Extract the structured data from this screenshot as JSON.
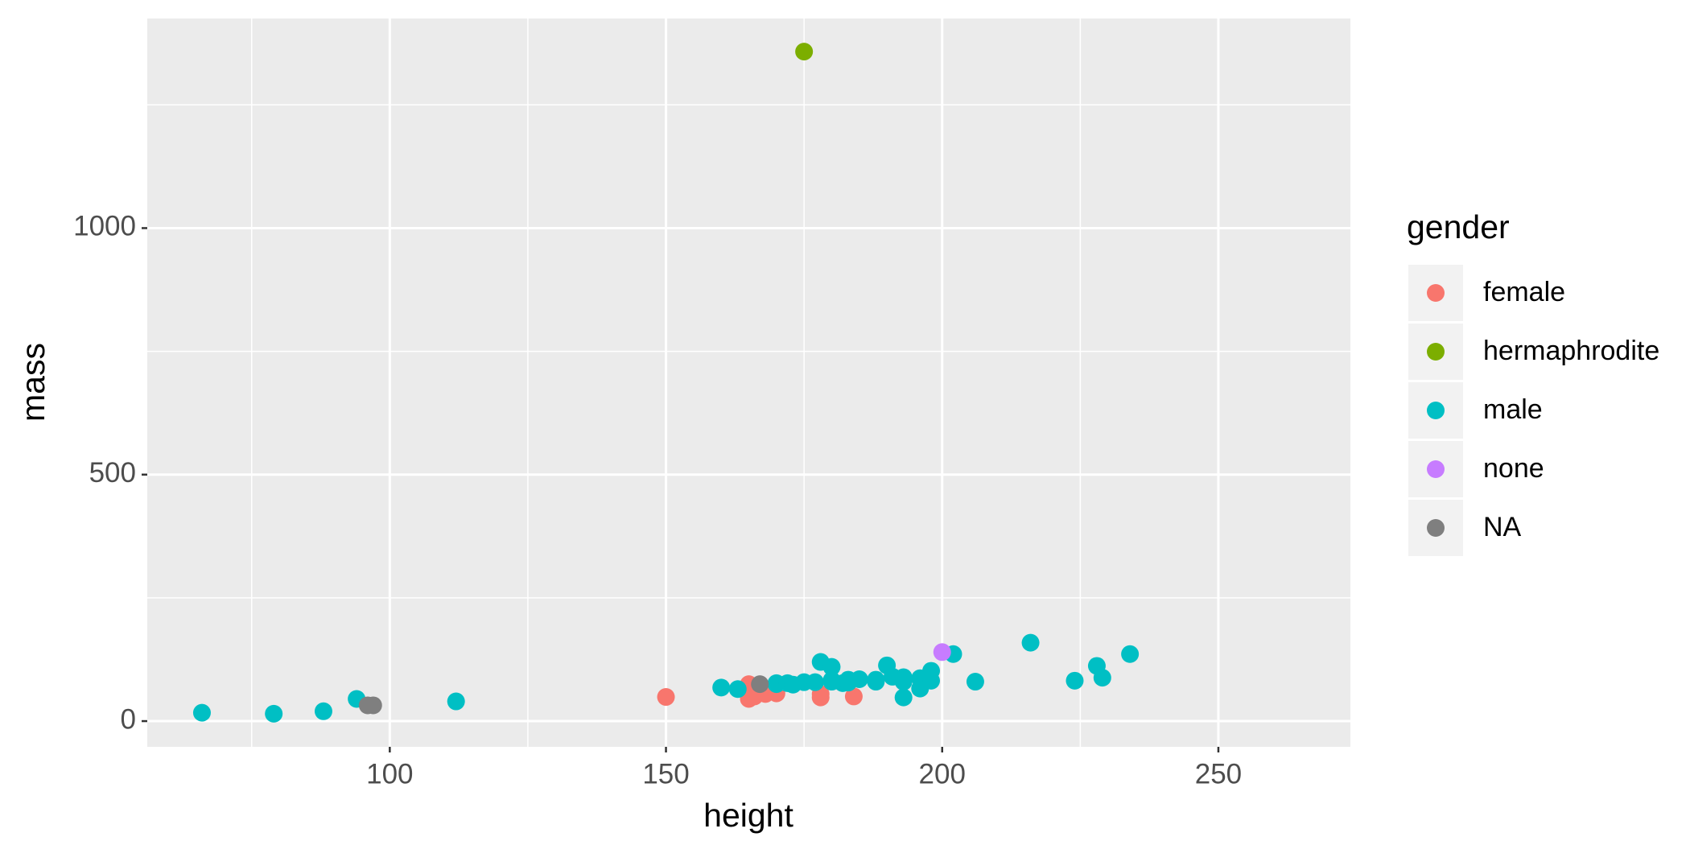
{
  "chart_data": {
    "type": "scatter",
    "x_label": "height",
    "y_label": "mass",
    "legend_title": "gender",
    "legend_position": "right",
    "grid": true,
    "xlim": [
      56.1,
      273.9
    ],
    "ylim": [
      -52.15,
      1425.15
    ],
    "xticks": [
      100,
      150,
      200,
      250
    ],
    "yticks": [
      0,
      500,
      1000
    ],
    "series": [
      {
        "name": "female",
        "color": "#F8766D",
        "x": [
          150,
          165,
          165,
          166,
          168,
          170,
          178,
          178,
          184
        ],
        "y": [
          49,
          45,
          75,
          50,
          55,
          56.2,
          55,
          48,
          50
        ]
      },
      {
        "name": "hermaphrodite",
        "color": "#7CAE00",
        "x": [
          175
        ],
        "y": [
          1358
        ]
      },
      {
        "name": "male",
        "color": "#00BFC4",
        "x": [
          66,
          79,
          88,
          94,
          112,
          160,
          163,
          170,
          170,
          172,
          173,
          175,
          177,
          178,
          180,
          180,
          180,
          182,
          183,
          183,
          183,
          183,
          185,
          188,
          188,
          190,
          191,
          193,
          193,
          193,
          196,
          196,
          198,
          198,
          202,
          206,
          216,
          224,
          228,
          229,
          234
        ],
        "y": [
          17,
          15,
          20,
          45,
          40,
          68,
          65,
          77,
          75,
          77,
          74,
          79,
          79,
          120,
          110,
          80,
          83,
          77,
          84,
          78.2,
          80,
          79,
          85,
          84,
          80,
          113,
          90,
          89,
          80,
          48,
          66,
          87,
          102,
          82,
          136,
          80,
          159,
          82,
          112,
          88,
          136
        ]
      },
      {
        "name": "none",
        "color": "#C77CFF",
        "x": [
          200
        ],
        "y": [
          140
        ]
      },
      {
        "name": "NA",
        "color": "#7F7F7F",
        "x": [
          167,
          96,
          97
        ],
        "y": [
          75,
          32,
          32
        ]
      }
    ]
  }
}
